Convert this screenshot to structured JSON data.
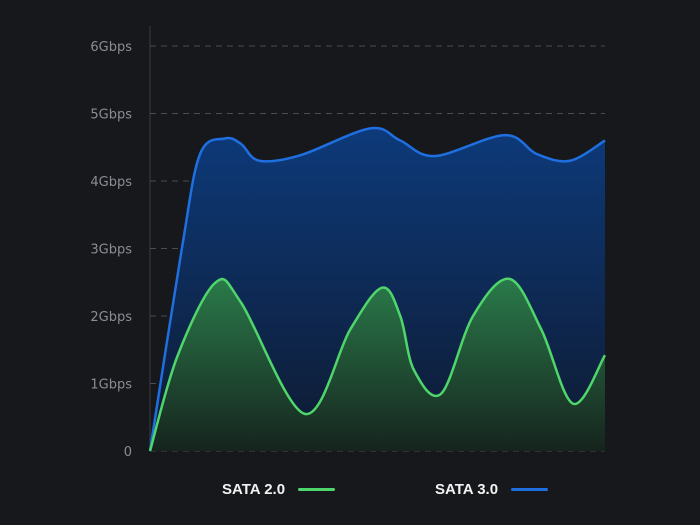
{
  "chart_data": {
    "type": "area",
    "title": "",
    "xlabel": "",
    "ylabel": "",
    "ylim": [
      0,
      6
    ],
    "xlim": [
      0,
      100
    ],
    "grid": true,
    "legend_placement": "bottom",
    "y_ticks": [
      {
        "value": 0,
        "label": "0"
      },
      {
        "value": 1,
        "label": "1Gbps"
      },
      {
        "value": 2,
        "label": "2Gbps"
      },
      {
        "value": 3,
        "label": "3Gbps"
      },
      {
        "value": 4,
        "label": "4Gbps"
      },
      {
        "value": 5,
        "label": "5Gbps"
      },
      {
        "value": 6,
        "label": "6Gbps"
      }
    ],
    "series": [
      {
        "name": "SATA 3.0",
        "color": "#1f6fe0",
        "points": [
          [
            0,
            0
          ],
          [
            7,
            3.0
          ],
          [
            11,
            4.4
          ],
          [
            16.5,
            4.63
          ],
          [
            20,
            4.55
          ],
          [
            24,
            4.3
          ],
          [
            33,
            4.38
          ],
          [
            48.4,
            4.78
          ],
          [
            55,
            4.6
          ],
          [
            62.6,
            4.37
          ],
          [
            78,
            4.68
          ],
          [
            85,
            4.4
          ],
          [
            92.3,
            4.3
          ],
          [
            100,
            4.6
          ]
        ]
      },
      {
        "name": "SATA 2.0",
        "color": "#4fd66b",
        "points": [
          [
            0,
            0
          ],
          [
            6,
            1.4
          ],
          [
            14.3,
            2.49
          ],
          [
            20,
            2.2
          ],
          [
            34,
            0.55
          ],
          [
            44,
            1.8
          ],
          [
            51,
            2.42
          ],
          [
            55,
            2.0
          ],
          [
            58,
            1.2
          ],
          [
            64,
            0.85
          ],
          [
            71,
            2.0
          ],
          [
            79,
            2.55
          ],
          [
            86,
            1.8
          ],
          [
            93,
            0.7
          ],
          [
            100,
            1.42
          ]
        ]
      }
    ]
  },
  "legend": [
    {
      "label": "SATA 2.0",
      "color": "#4fd66b"
    },
    {
      "label": "SATA 3.0",
      "color": "#1f6fe0"
    }
  ]
}
